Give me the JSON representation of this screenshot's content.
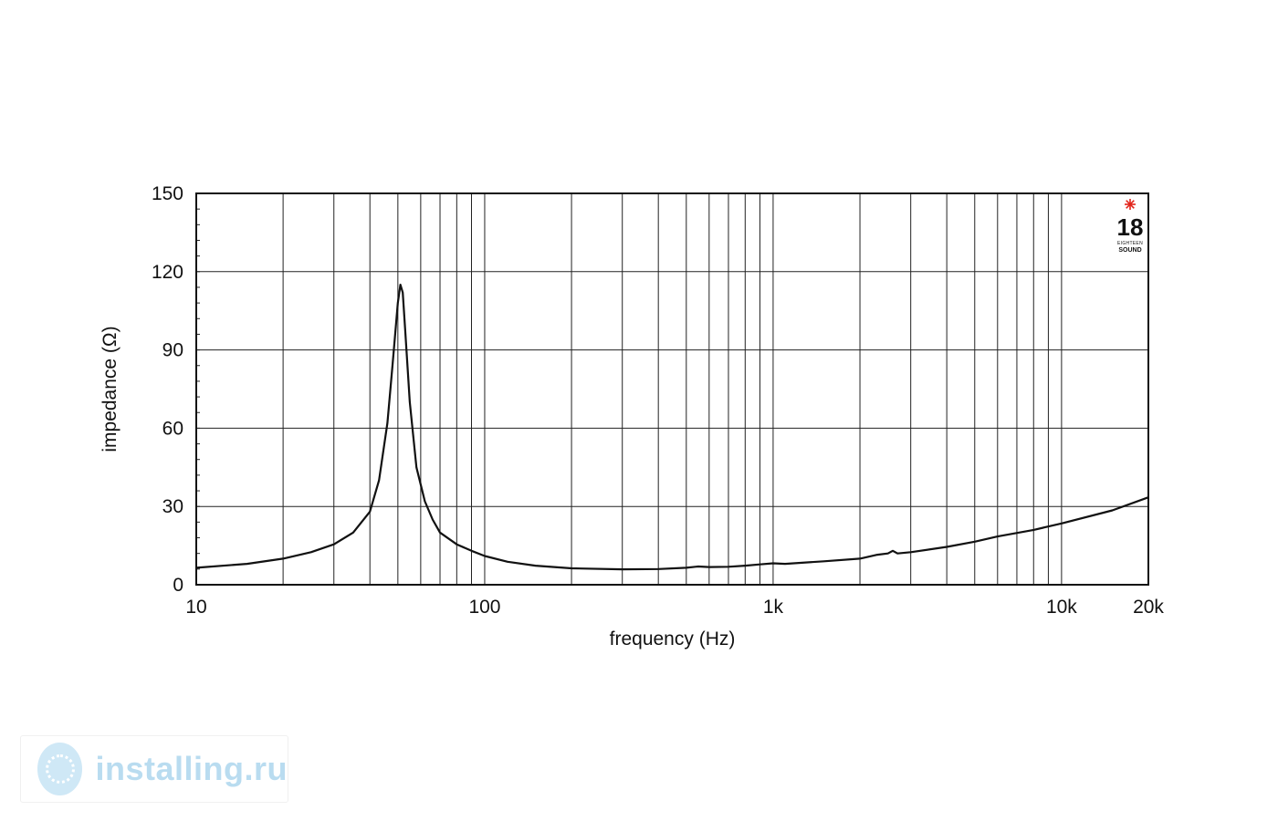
{
  "chart_data": {
    "type": "line",
    "title": "",
    "xlabel": "frequency (Hz)",
    "ylabel": "impedance (Ω)",
    "x_scale": "log",
    "xlim": [
      10,
      20000
    ],
    "ylim": [
      0,
      150
    ],
    "x_ticks": [
      {
        "value": 10,
        "label": "10"
      },
      {
        "value": 100,
        "label": "100"
      },
      {
        "value": 1000,
        "label": "1k"
      },
      {
        "value": 10000,
        "label": "10k"
      },
      {
        "value": 20000,
        "label": "20k"
      }
    ],
    "y_ticks": [
      {
        "value": 0,
        "label": "0"
      },
      {
        "value": 30,
        "label": "30"
      },
      {
        "value": 60,
        "label": "60"
      },
      {
        "value": 90,
        "label": "90"
      },
      {
        "value": 120,
        "label": "120"
      },
      {
        "value": 150,
        "label": "150"
      }
    ],
    "grid": true,
    "series": [
      {
        "color": "#111111",
        "x": [
          10,
          15,
          20,
          25,
          30,
          35,
          40,
          43,
          46,
          48,
          50,
          51,
          52,
          53,
          55,
          58,
          62,
          66,
          70,
          80,
          90,
          100,
          120,
          150,
          200,
          300,
          400,
          500,
          550,
          600,
          700,
          800,
          900,
          1000,
          1100,
          1500,
          2000,
          2300,
          2500,
          2600,
          2700,
          3000,
          4000,
          5000,
          6000,
          8000,
          10000,
          15000,
          20000
        ],
        "y": [
          6.5,
          8,
          10,
          12.5,
          15.5,
          20,
          28,
          40,
          62,
          85,
          108,
          115,
          112,
          98,
          70,
          45,
          32,
          25,
          20,
          15.5,
          13,
          11,
          8.8,
          7.3,
          6.3,
          5.9,
          6.0,
          6.5,
          7.0,
          6.8,
          6.9,
          7.3,
          7.8,
          8.2,
          8.0,
          9.0,
          10.0,
          11.5,
          12.0,
          13.0,
          12.0,
          12.5,
          14.5,
          16.5,
          18.5,
          21,
          23.5,
          28.5,
          33.5
        ]
      }
    ]
  },
  "brand": {
    "number": "18",
    "line1": "EIGHTEEN",
    "line2": "SOUND"
  },
  "watermark": {
    "text": "installing.ru"
  }
}
